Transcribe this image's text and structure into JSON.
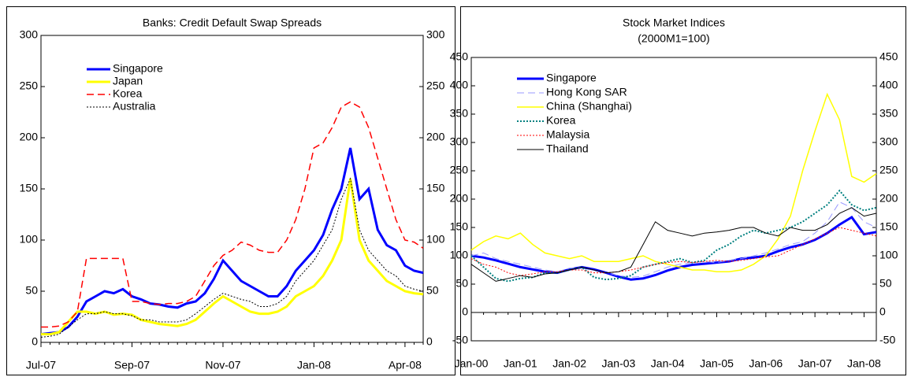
{
  "chart_data": [
    {
      "type": "line",
      "title": "Banks: Credit Default Swap Spreads",
      "categories": [
        "Jul-07",
        null,
        null,
        null,
        null,
        null,
        null,
        null,
        null,
        null,
        "Sep-07",
        null,
        null,
        null,
        null,
        null,
        null,
        null,
        null,
        null,
        "Nov-07",
        null,
        null,
        null,
        null,
        null,
        null,
        null,
        null,
        null,
        "Jan-08",
        null,
        null,
        null,
        null,
        null,
        null,
        null,
        null,
        null,
        "Apr-08",
        null,
        null
      ],
      "series": [
        {
          "name": "Singapore",
          "color": "#0000ff",
          "width": 3,
          "dash": "solid",
          "values": [
            8,
            9,
            10,
            15,
            25,
            40,
            45,
            50,
            48,
            52,
            45,
            42,
            38,
            37,
            35,
            34,
            38,
            40,
            48,
            62,
            80,
            70,
            60,
            55,
            50,
            45,
            45,
            55,
            70,
            80,
            90,
            105,
            130,
            150,
            190,
            140,
            150,
            110,
            95,
            90,
            75,
            70,
            68
          ]
        },
        {
          "name": "Japan",
          "color": "#ffff00",
          "width": 3,
          "dash": "solid",
          "values": [
            8,
            8,
            10,
            20,
            30,
            30,
            28,
            30,
            27,
            28,
            27,
            22,
            20,
            18,
            17,
            16,
            18,
            22,
            30,
            38,
            45,
            40,
            35,
            30,
            28,
            28,
            30,
            35,
            45,
            50,
            55,
            65,
            80,
            100,
            160,
            100,
            80,
            70,
            60,
            55,
            50,
            48,
            47
          ]
        },
        {
          "name": "Korea",
          "color": "#ff0000",
          "width": 1.5,
          "dash": "dashed",
          "values": [
            15,
            15,
            16,
            20,
            30,
            82,
            82,
            82,
            82,
            82,
            40,
            40,
            38,
            37,
            38,
            38,
            40,
            45,
            60,
            75,
            85,
            90,
            98,
            95,
            90,
            88,
            88,
            100,
            120,
            150,
            190,
            195,
            210,
            230,
            235,
            230,
            210,
            180,
            150,
            120,
            100,
            98,
            92
          ]
        },
        {
          "name": "Australia",
          "color": "#000000",
          "width": 1,
          "dash": "dotted",
          "values": [
            5,
            6,
            8,
            15,
            22,
            28,
            28,
            30,
            28,
            28,
            26,
            22,
            22,
            20,
            20,
            20,
            22,
            28,
            35,
            42,
            48,
            45,
            42,
            40,
            35,
            35,
            38,
            45,
            60,
            70,
            80,
            95,
            110,
            140,
            160,
            110,
            90,
            80,
            70,
            65,
            55,
            52,
            50
          ]
        }
      ],
      "ylim": [
        0,
        300
      ],
      "yticks": [
        0,
        50,
        100,
        150,
        200,
        250,
        300
      ],
      "y2lim": [
        0,
        300
      ],
      "y2ticks": [
        0,
        50,
        100,
        150,
        200,
        250,
        300
      ],
      "legend": "upper left"
    },
    {
      "type": "line",
      "title": "Stock Market Indices",
      "subtitle": "(2000M1=100)",
      "categories": [
        "Jan-00",
        null,
        null,
        null,
        "Jan-01",
        null,
        null,
        null,
        "Jan-02",
        null,
        null,
        null,
        "Jan-03",
        null,
        null,
        null,
        "Jan-04",
        null,
        null,
        null,
        "Jan-05",
        null,
        null,
        null,
        "Jan-06",
        null,
        null,
        null,
        "Jan-07",
        null,
        null,
        null,
        "Jan-08",
        null
      ],
      "series": [
        {
          "name": "Singapore",
          "color": "#0000ff",
          "width": 3,
          "dash": "solid",
          "values": [
            100,
            97,
            92,
            86,
            80,
            76,
            72,
            70,
            76,
            80,
            76,
            70,
            63,
            58,
            60,
            66,
            74,
            80,
            84,
            86,
            88,
            90,
            95,
            97,
            100,
            108,
            115,
            120,
            128,
            140,
            155,
            168,
            138,
            142
          ]
        },
        {
          "name": "Hong Kong SAR",
          "color": "#9999ff",
          "width": 1,
          "dash": "dashed",
          "values": [
            100,
            105,
            95,
            90,
            85,
            80,
            75,
            72,
            78,
            80,
            75,
            70,
            65,
            62,
            64,
            72,
            80,
            85,
            88,
            90,
            88,
            92,
            95,
            100,
            105,
            112,
            120,
            125,
            140,
            160,
            195,
            185,
            160,
            150
          ]
        },
        {
          "name": "China (Shanghai)",
          "color": "#ffff00",
          "width": 1.5,
          "dash": "solid",
          "values": [
            110,
            125,
            135,
            130,
            140,
            120,
            105,
            100,
            95,
            100,
            90,
            90,
            90,
            95,
            100,
            90,
            85,
            80,
            75,
            75,
            72,
            72,
            75,
            85,
            100,
            130,
            170,
            250,
            320,
            385,
            340,
            240,
            230,
            245
          ]
        },
        {
          "name": "Korea",
          "color": "#008080",
          "width": 2,
          "dash": "dotted",
          "values": [
            100,
            80,
            60,
            55,
            60,
            62,
            70,
            70,
            75,
            80,
            62,
            58,
            60,
            65,
            80,
            85,
            90,
            95,
            88,
            92,
            110,
            120,
            135,
            145,
            140,
            145,
            150,
            160,
            175,
            190,
            215,
            190,
            180,
            185
          ]
        },
        {
          "name": "Malaysia",
          "color": "#ff0000",
          "width": 1,
          "dash": "dotted",
          "values": [
            95,
            85,
            80,
            70,
            65,
            68,
            72,
            72,
            75,
            75,
            70,
            70,
            72,
            75,
            80,
            85,
            88,
            90,
            88,
            90,
            92,
            90,
            92,
            95,
            98,
            100,
            110,
            120,
            130,
            140,
            150,
            145,
            140,
            135
          ]
        },
        {
          "name": "Thailand",
          "color": "#000000",
          "width": 1,
          "dash": "solid",
          "values": [
            85,
            70,
            55,
            60,
            65,
            62,
            68,
            70,
            75,
            80,
            75,
            70,
            72,
            80,
            120,
            160,
            145,
            140,
            135,
            140,
            142,
            145,
            150,
            150,
            140,
            135,
            150,
            145,
            145,
            155,
            175,
            185,
            170,
            175
          ]
        }
      ],
      "ylim": [
        -50,
        450
      ],
      "yticks": [
        -50,
        0,
        50,
        100,
        150,
        200,
        250,
        300,
        350,
        400,
        450
      ],
      "y2lim": [
        -50,
        450
      ],
      "y2ticks": [
        -50,
        0,
        50,
        100,
        150,
        200,
        250,
        300,
        350,
        400,
        450
      ],
      "legend": "upper left"
    }
  ]
}
